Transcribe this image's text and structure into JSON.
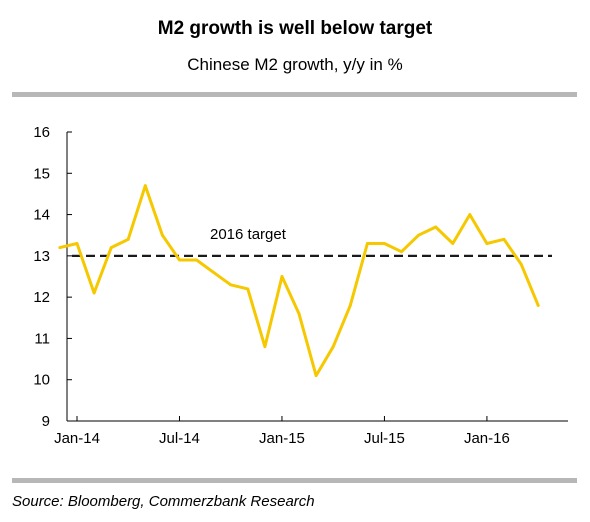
{
  "header": {
    "title": "M2 growth is well below target",
    "subtitle": "Chinese M2 growth, y/y in %"
  },
  "footer": {
    "source": "Source: Bloomberg, Commerzbank Research"
  },
  "chart_data": {
    "type": "line",
    "title": "M2 growth is well below target",
    "subtitle": "Chinese M2 growth, y/y in %",
    "xlabel": "",
    "ylabel": "",
    "ylim": [
      9,
      16
    ],
    "yticks": [
      9,
      10,
      11,
      12,
      13,
      14,
      15,
      16
    ],
    "x_ticks": [
      {
        "label": "Jan-14",
        "date": "2014-01"
      },
      {
        "label": "Jul-14",
        "date": "2014-07"
      },
      {
        "label": "Jan-15",
        "date": "2015-01"
      },
      {
        "label": "Jul-15",
        "date": "2015-07"
      },
      {
        "label": "Jan-16",
        "date": "2016-01"
      }
    ],
    "grid": false,
    "series": [
      {
        "color": "#f5c800",
        "points": [
          {
            "date": "2013-12",
            "value": 13.2
          },
          {
            "date": "2014-01",
            "value": 13.3
          },
          {
            "date": "2014-02",
            "value": 12.1
          },
          {
            "date": "2014-03",
            "value": 13.2
          },
          {
            "date": "2014-04",
            "value": 13.4
          },
          {
            "date": "2014-05",
            "value": 14.7
          },
          {
            "date": "2014-06",
            "value": 13.5
          },
          {
            "date": "2014-07",
            "value": 12.9
          },
          {
            "date": "2014-08",
            "value": 12.9
          },
          {
            "date": "2014-09",
            "value": 12.6
          },
          {
            "date": "2014-10",
            "value": 12.3
          },
          {
            "date": "2014-11",
            "value": 12.2
          },
          {
            "date": "2014-12",
            "value": 10.8
          },
          {
            "date": "2015-01",
            "value": 12.5
          },
          {
            "date": "2015-02",
            "value": 11.6
          },
          {
            "date": "2015-03",
            "value": 10.1
          },
          {
            "date": "2015-04",
            "value": 10.8
          },
          {
            "date": "2015-05",
            "value": 11.8
          },
          {
            "date": "2015-06",
            "value": 13.3
          },
          {
            "date": "2015-07",
            "value": 13.3
          },
          {
            "date": "2015-08",
            "value": 13.1
          },
          {
            "date": "2015-09",
            "value": 13.5
          },
          {
            "date": "2015-10",
            "value": 13.7
          },
          {
            "date": "2015-11",
            "value": 13.3
          },
          {
            "date": "2015-12",
            "value": 14.0
          },
          {
            "date": "2016-01",
            "value": 13.3
          },
          {
            "date": "2016-02",
            "value": 13.4
          },
          {
            "date": "2016-03",
            "value": 12.8
          },
          {
            "date": "2016-04",
            "value": 11.8
          }
        ]
      }
    ],
    "reference_line": {
      "label": "2016 target",
      "value": 13,
      "style": "dashed",
      "color": "#1a1a1a"
    }
  }
}
